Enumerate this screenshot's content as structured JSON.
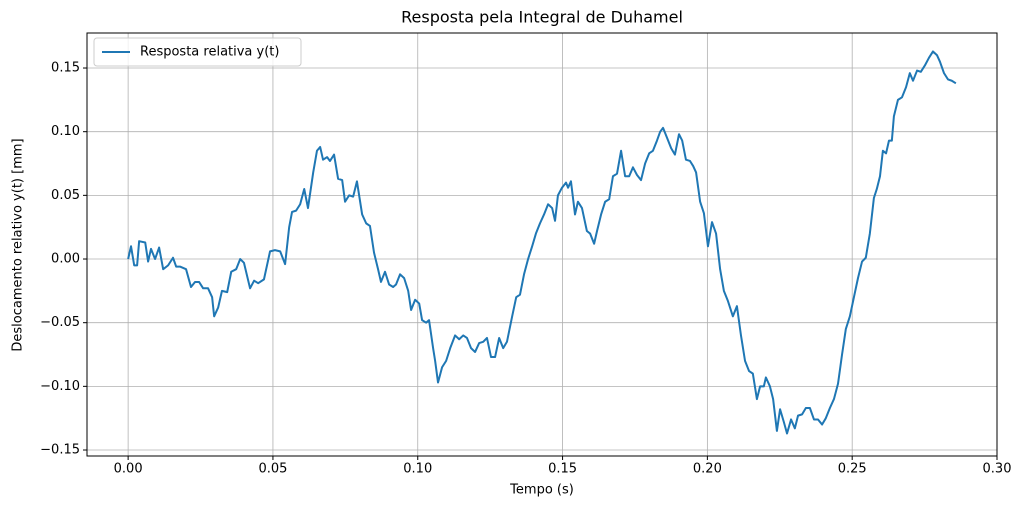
{
  "chart_data": {
    "type": "line",
    "title": "Resposta pela Integral de Duhamel",
    "xlabel": "Tempo (s)",
    "ylabel": "Deslocamento relativo y(t) [mm]",
    "x": [
      0,
      0.001,
      0.0021,
      0.0031,
      0.0038,
      0.0059,
      0.0069,
      0.0079,
      0.0093,
      0.0107,
      0.0121,
      0.0138,
      0.0155,
      0.0166,
      0.018,
      0.02,
      0.0217,
      0.0231,
      0.0245,
      0.0259,
      0.0276,
      0.029,
      0.0297,
      0.0311,
      0.0324,
      0.0342,
      0.0356,
      0.0373,
      0.0387,
      0.04,
      0.0421,
      0.0435,
      0.0449,
      0.0469,
      0.049,
      0.0507,
      0.0525,
      0.0542,
      0.0556,
      0.0566,
      0.058,
      0.0594,
      0.0608,
      0.0621,
      0.0639,
      0.0652,
      0.0663,
      0.0673,
      0.0687,
      0.0697,
      0.0711,
      0.0725,
      0.0739,
      0.0749,
      0.0763,
      0.0777,
      0.079,
      0.0808,
      0.0822,
      0.0835,
      0.0849,
      0.0863,
      0.0873,
      0.0887,
      0.0901,
      0.0915,
      0.0925,
      0.0939,
      0.0953,
      0.0967,
      0.0977,
      0.0991,
      0.1005,
      0.1015,
      0.1029,
      0.1039,
      0.1053,
      0.106,
      0.107,
      0.1084,
      0.1098,
      0.1112,
      0.1129,
      0.1143,
      0.1157,
      0.117,
      0.1184,
      0.1198,
      0.1212,
      0.1226,
      0.1239,
      0.1253,
      0.1267,
      0.1281,
      0.1295,
      0.1308,
      0.1326,
      0.134,
      0.1353,
      0.1367,
      0.1381,
      0.1395,
      0.1408,
      0.1422,
      0.1436,
      0.145,
      0.1464,
      0.1474,
      0.1484,
      0.1498,
      0.1512,
      0.1519,
      0.1529,
      0.1543,
      0.1553,
      0.1567,
      0.1584,
      0.1595,
      0.1609,
      0.1619,
      0.1633,
      0.1647,
      0.1661,
      0.1674,
      0.1688,
      0.1702,
      0.1716,
      0.173,
      0.1743,
      0.1757,
      0.1771,
      0.1785,
      0.1799,
      0.1812,
      0.1826,
      0.1837,
      0.1847,
      0.1861,
      0.1875,
      0.1888,
      0.1902,
      0.1913,
      0.1926,
      0.194,
      0.1951,
      0.1961,
      0.1975,
      0.1988,
      0.2002,
      0.2016,
      0.203,
      0.2044,
      0.2057,
      0.2071,
      0.2088,
      0.2102,
      0.2116,
      0.213,
      0.2144,
      0.2157,
      0.2171,
      0.2182,
      0.2195,
      0.2202,
      0.2216,
      0.2227,
      0.224,
      0.2251,
      0.2264,
      0.2275,
      0.2289,
      0.2302,
      0.2313,
      0.2327,
      0.234,
      0.2354,
      0.2368,
      0.2382,
      0.2396,
      0.2409,
      0.2423,
      0.2437,
      0.2451,
      0.2465,
      0.2478,
      0.2492,
      0.2506,
      0.252,
      0.2534,
      0.2547,
      0.2561,
      0.2575,
      0.2585,
      0.2596,
      0.2606,
      0.2617,
      0.2627,
      0.2637,
      0.2644,
      0.2658,
      0.2672,
      0.2686,
      0.2699,
      0.271,
      0.2724,
      0.2737,
      0.2751,
      0.2765,
      0.2779,
      0.2793,
      0.2803,
      0.2817,
      0.2831,
      0.2844,
      0.2858
    ],
    "series": [
      {
        "name": "Resposta relativa y(t)",
        "color": "#1f77b4",
        "values": [
          0,
          0.01,
          -0.005,
          -0.005,
          0.014,
          0.013,
          -0.002,
          0.008,
          0.0,
          0.009,
          -0.008,
          -0.005,
          0.001,
          -0.006,
          -0.006,
          -0.008,
          -0.022,
          -0.018,
          -0.018,
          -0.023,
          -0.023,
          -0.03,
          -0.045,
          -0.038,
          -0.025,
          -0.026,
          -0.01,
          -0.008,
          0.0,
          -0.003,
          -0.023,
          -0.017,
          -0.019,
          -0.016,
          0.006,
          0.007,
          0.006,
          -0.004,
          0.025,
          0.037,
          0.038,
          0.043,
          0.055,
          0.04,
          0.068,
          0.085,
          0.088,
          0.078,
          0.08,
          0.077,
          0.082,
          0.063,
          0.062,
          0.045,
          0.05,
          0.049,
          0.061,
          0.035,
          0.028,
          0.026,
          0.005,
          -0.008,
          -0.018,
          -0.01,
          -0.02,
          -0.022,
          -0.02,
          -0.012,
          -0.015,
          -0.025,
          -0.04,
          -0.032,
          -0.035,
          -0.048,
          -0.05,
          -0.048,
          -0.07,
          -0.08,
          -0.097,
          -0.085,
          -0.08,
          -0.07,
          -0.06,
          -0.063,
          -0.06,
          -0.062,
          -0.07,
          -0.073,
          -0.066,
          -0.065,
          -0.062,
          -0.077,
          -0.077,
          -0.062,
          -0.07,
          -0.065,
          -0.045,
          -0.03,
          -0.028,
          -0.012,
          0.0,
          0.01,
          0.02,
          0.028,
          0.035,
          0.043,
          0.04,
          0.03,
          0.05,
          0.056,
          0.06,
          0.056,
          0.061,
          0.035,
          0.045,
          0.04,
          0.022,
          0.02,
          0.012,
          0.022,
          0.035,
          0.045,
          0.047,
          0.065,
          0.067,
          0.085,
          0.065,
          0.065,
          0.072,
          0.066,
          0.062,
          0.075,
          0.083,
          0.085,
          0.093,
          0.1,
          0.103,
          0.095,
          0.087,
          0.082,
          0.098,
          0.093,
          0.078,
          0.077,
          0.073,
          0.068,
          0.045,
          0.036,
          0.01,
          0.029,
          0.02,
          -0.008,
          -0.025,
          -0.033,
          -0.045,
          -0.037,
          -0.06,
          -0.08,
          -0.088,
          -0.09,
          -0.11,
          -0.1,
          -0.1,
          -0.093,
          -0.1,
          -0.11,
          -0.135,
          -0.118,
          -0.128,
          -0.137,
          -0.126,
          -0.133,
          -0.123,
          -0.122,
          -0.117,
          -0.117,
          -0.126,
          -0.126,
          -0.13,
          -0.125,
          -0.117,
          -0.11,
          -0.098,
          -0.075,
          -0.055,
          -0.045,
          -0.03,
          -0.015,
          -0.002,
          0.001,
          0.02,
          0.048,
          0.055,
          0.065,
          0.085,
          0.083,
          0.093,
          0.093,
          0.112,
          0.125,
          0.127,
          0.135,
          0.146,
          0.14,
          0.148,
          0.147,
          0.152,
          0.158,
          0.163,
          0.16,
          0.155,
          0.146,
          0.141,
          0.14,
          0.138
        ]
      }
    ],
    "xlim": [
      -0.0142,
      0.3
    ],
    "ylim": [
      -0.1547,
      0.1775
    ],
    "xticks": [
      {
        "value": 0,
        "label": "0.00"
      },
      0.05,
      {
        "value": 0.1,
        "label": "0.10"
      },
      0.15,
      {
        "value": 0.2,
        "label": "0.20"
      },
      0.25,
      {
        "value": 0.3,
        "label": "0.30"
      }
    ],
    "yticks": [
      {
        "value": -0.15,
        "label": "−0.15"
      },
      {
        "value": -0.1,
        "label": "−0.10"
      },
      {
        "value": -0.05,
        "label": "−0.05"
      },
      {
        "value": 0,
        "label": "0.00"
      },
      0.05,
      {
        "value": 0.1,
        "label": "0.10"
      },
      0.15
    ],
    "grid": true,
    "legend": "upper left"
  }
}
